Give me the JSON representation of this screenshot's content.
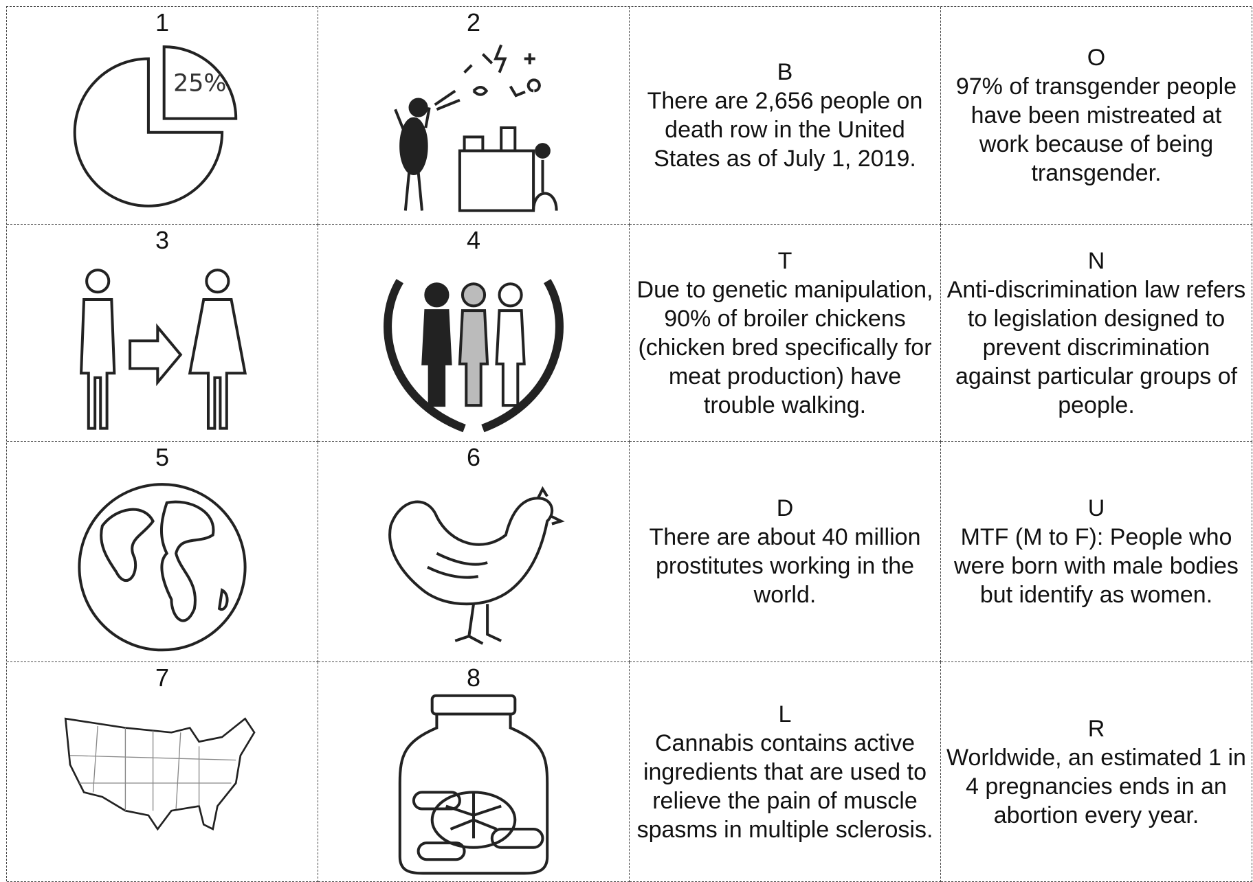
{
  "rows": [
    {
      "pictures": [
        {
          "number": "1",
          "label": "25%"
        },
        {
          "number": "2"
        }
      ],
      "facts": [
        {
          "letter": "B",
          "text": "There are 2,656 people on death row in the United States as of July 1, 2019."
        },
        {
          "letter": "O",
          "text": "97% of transgender people have been mistreated at work because of being transgender."
        }
      ]
    },
    {
      "pictures": [
        {
          "number": "3"
        },
        {
          "number": "4"
        }
      ],
      "facts": [
        {
          "letter": "T",
          "text": "Due to genetic manipulation, 90% of broiler chickens (chicken bred specifically for meat production) have trouble walking."
        },
        {
          "letter": "N",
          "text": "Anti-discrimination law refers to legislation designed to prevent discrimination against particular groups of people."
        }
      ]
    },
    {
      "pictures": [
        {
          "number": "5"
        },
        {
          "number": "6"
        }
      ],
      "facts": [
        {
          "letter": "D",
          "text": "There are about 40 million prostitutes working in the world."
        },
        {
          "letter": "U",
          "text": "MTF (M to F): People who were born with male bodies but identify as women."
        }
      ]
    },
    {
      "pictures": [
        {
          "number": "7"
        },
        {
          "number": "8"
        }
      ],
      "facts": [
        {
          "letter": "L",
          "text": "Cannabis contains active ingredients that are used to relieve the pain of muscle spasms in multiple sclerosis."
        },
        {
          "letter": "R",
          "text": "Worldwide, an estimated 1 in 4 pregnancies ends in an abortion every year."
        }
      ]
    }
  ]
}
